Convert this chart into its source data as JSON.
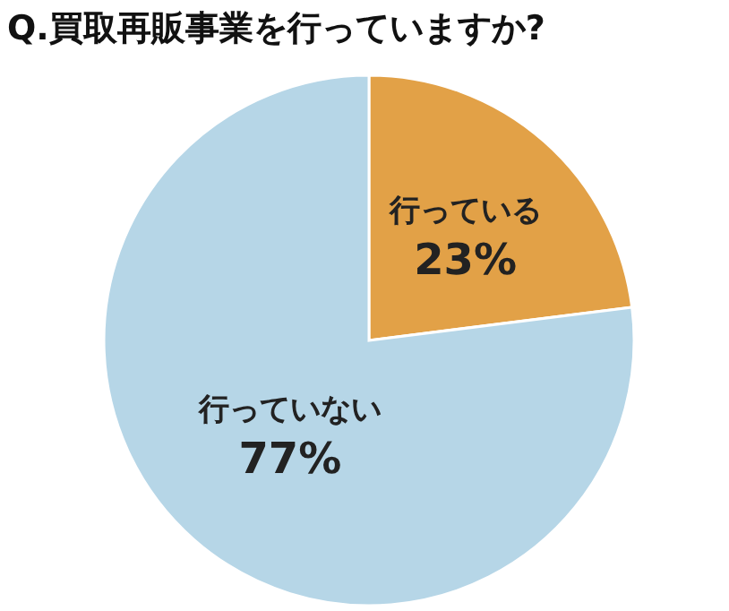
{
  "chart_data": {
    "type": "pie",
    "title": "Q.買取再販事業を行っていますか?",
    "categories": [
      "行っている",
      "行っていない"
    ],
    "values": [
      23,
      77
    ],
    "colors": [
      "#e2a147",
      "#b6d6e7"
    ],
    "value_labels": [
      "23%",
      "77%"
    ]
  }
}
